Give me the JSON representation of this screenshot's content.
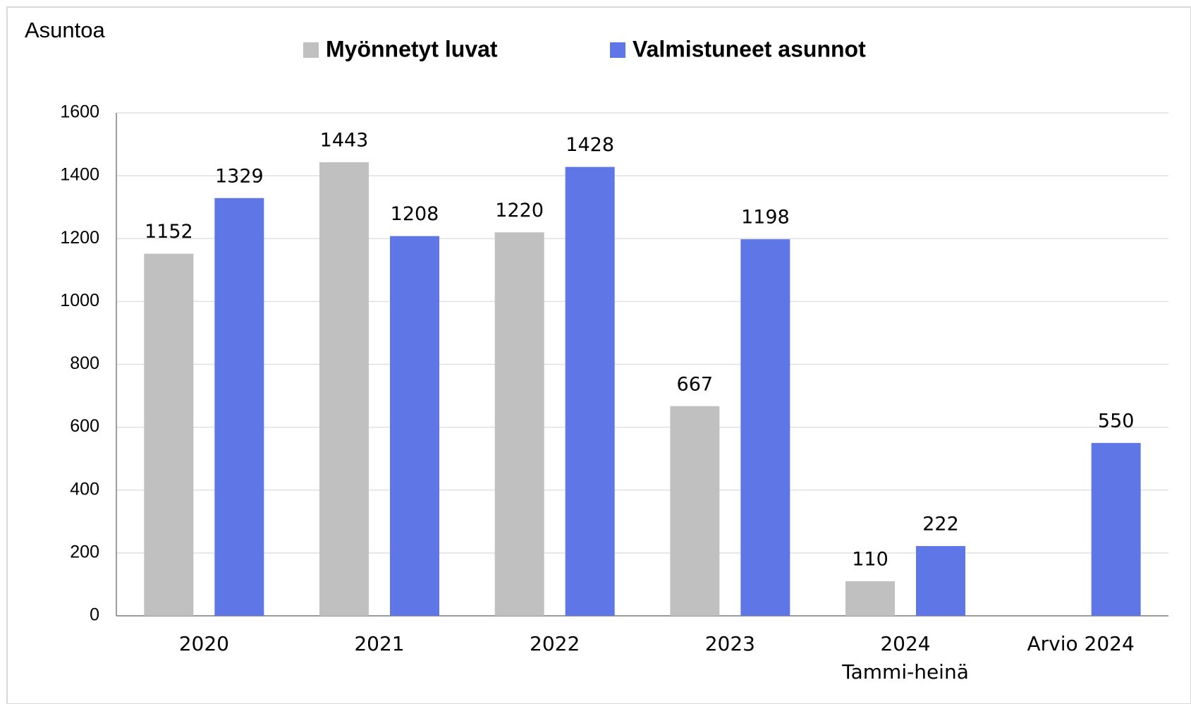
{
  "chart_data": {
    "type": "bar",
    "y_label": "Asuntoa",
    "categories": [
      "2020",
      "2021",
      "2022",
      "2023",
      "2024\nTammi-heinä",
      "Arvio 2024"
    ],
    "series": [
      {
        "name": "Myönnetyt luvat",
        "color": "#c0c0c0",
        "values": [
          1152,
          1443,
          1220,
          667,
          110,
          null
        ]
      },
      {
        "name": "Valmistuneet asunnot",
        "color": "#5f77e6",
        "values": [
          1329,
          1208,
          1428,
          1198,
          222,
          550
        ]
      }
    ],
    "ylim": [
      0,
      1600
    ],
    "yticks": [
      0,
      200,
      400,
      600,
      800,
      1000,
      1200,
      1400,
      1600
    ],
    "grid": true,
    "legend": "top"
  }
}
